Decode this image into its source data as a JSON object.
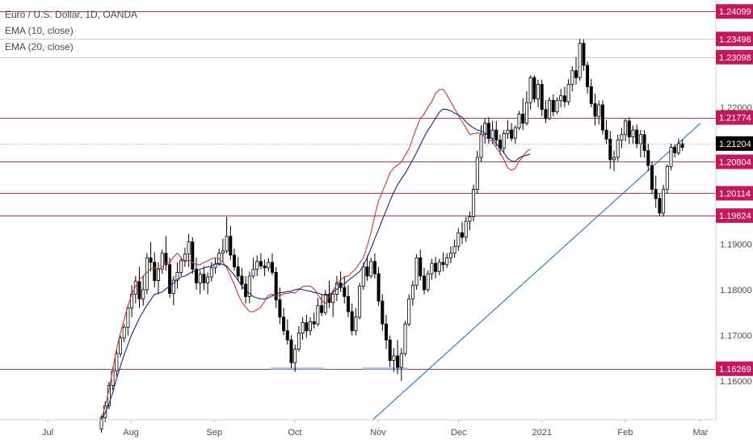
{
  "legend": {
    "symbol": "Euro / U.S. Dollar, 1D, OANDA",
    "ema10": "EMA (10, close)",
    "ema20": "EMA (20, close)"
  },
  "colors": {
    "candle_up_fill": "#ffffff",
    "candle_down_fill": "#000000",
    "candle_outline": "#000000",
    "ema10": "#d32f2f",
    "ema20": "#1a237e",
    "level_line": "#b0306a",
    "trendline": "#1565c0",
    "support_box": "#8fa8e8",
    "badge_bg": "#c2185b",
    "last_badge_bg": "#000000",
    "axis_text": "#4a4a4a",
    "grid_ref": "#bdbdbd"
  },
  "chart_data": {
    "type": "candlestick",
    "title": "Euro / U.S. Dollar, 1D, OANDA",
    "ylim": [
      1.1515,
      1.2435
    ],
    "y_ticks": [
      "1.16000",
      "1.17000",
      "1.18000",
      "1.19000",
      "1.22000"
    ],
    "x_ticks": [
      "Jul",
      "Aug",
      "Sep",
      "Oct",
      "Nov",
      "Dec",
      "2021",
      "Feb",
      "Mar"
    ],
    "horizontal_levels": [
      {
        "label": "1.24099",
        "value": 1.24099,
        "style": "solid"
      },
      {
        "label": "1.23496",
        "value": 1.23496,
        "style": "reference"
      },
      {
        "label": "1.23098",
        "value": 1.23098,
        "style": "reference"
      },
      {
        "label": "1.21774",
        "value": 1.21774,
        "style": "solid"
      },
      {
        "label": "1.20804",
        "value": 1.20804,
        "style": "solid"
      },
      {
        "label": "1.20114",
        "value": 1.20114,
        "style": "solid"
      },
      {
        "label": "1.19624",
        "value": 1.19624,
        "style": "solid"
      },
      {
        "label": "1.16269",
        "value": 1.16269,
        "style": "solid"
      }
    ],
    "last_price": {
      "label": "1.21204",
      "value": 1.21204
    },
    "trendline": {
      "from": [
        "2020-10-30",
        1.1515
      ],
      "to": [
        "2021-03-01",
        1.2165
      ]
    },
    "support_boxes": [
      {
        "from": "2020-09-22",
        "to": "2020-10-12",
        "value": 1.1627
      },
      {
        "from": "2020-10-26",
        "to": "2020-11-12",
        "value": 1.1627
      }
    ],
    "series": [
      {
        "name": "EMA (10, close)",
        "values": [
          1.1515,
          1.1545,
          1.158,
          1.1625,
          1.167,
          1.1705,
          1.1735,
          1.1765,
          1.179,
          1.1808,
          1.1822,
          1.183,
          1.1838,
          1.1846,
          1.1848,
          1.1845,
          1.185,
          1.1858,
          1.186,
          1.1872,
          1.188,
          1.187,
          1.186,
          1.1866,
          1.186,
          1.1855,
          1.1855,
          1.186,
          1.1863,
          1.1868,
          1.187,
          1.1868,
          1.186,
          1.1848,
          1.183,
          1.1812,
          1.179,
          1.1773,
          1.1762,
          1.1752,
          1.1752,
          1.1756,
          1.1762,
          1.1775,
          1.1788,
          1.179,
          1.1786,
          1.1787,
          1.1791,
          1.1792,
          1.1794,
          1.1793,
          1.18,
          1.1807,
          1.1808,
          1.1808,
          1.1802,
          1.179,
          1.1776,
          1.177,
          1.1785,
          1.1797,
          1.1812,
          1.1822,
          1.1828,
          1.183,
          1.1838,
          1.1846,
          1.1858,
          1.187,
          1.1896,
          1.1925,
          1.1962,
          1.1995,
          1.2015,
          1.2035,
          1.2056,
          1.2067,
          1.2073,
          1.208,
          1.2095,
          1.2108,
          1.2132,
          1.2155,
          1.2176,
          1.2185,
          1.22,
          1.2212,
          1.223,
          1.2239,
          1.2239,
          1.2227,
          1.2212,
          1.2197,
          1.2183,
          1.2168,
          1.2155,
          1.214,
          1.2142,
          1.2144,
          1.2142,
          1.2135,
          1.213,
          1.2125,
          1.2111,
          1.21,
          1.2085,
          1.2067,
          1.2062,
          1.2066,
          1.2082,
          1.2092,
          1.2103,
          1.2108
        ]
      },
      {
        "name": "EMA (20, close)",
        "values": [
          1.1515,
          1.153,
          1.155,
          1.1575,
          1.1605,
          1.1632,
          1.1658,
          1.168,
          1.1703,
          1.172,
          1.1738,
          1.1752,
          1.1766,
          1.1778,
          1.179,
          1.1792,
          1.1795,
          1.1802,
          1.1808,
          1.1815,
          1.1822,
          1.1828,
          1.183,
          1.1835,
          1.184,
          1.1842,
          1.1845,
          1.1848,
          1.185,
          1.1852,
          1.1857,
          1.1858,
          1.1855,
          1.1852,
          1.1842,
          1.1832,
          1.182,
          1.1808,
          1.1798,
          1.1792,
          1.1785,
          1.1782,
          1.178,
          1.178,
          1.1782,
          1.1787,
          1.179,
          1.1794,
          1.1794,
          1.1796,
          1.1797,
          1.18,
          1.1802,
          1.18,
          1.1798,
          1.1797,
          1.1794,
          1.1793,
          1.179,
          1.1788,
          1.179,
          1.1795,
          1.1801,
          1.1808,
          1.1813,
          1.182,
          1.1827,
          1.1833,
          1.184,
          1.1853,
          1.1871,
          1.189,
          1.1912,
          1.1932,
          1.1954,
          1.1974,
          1.1995,
          1.2014,
          1.203,
          1.2043,
          1.2055,
          1.207,
          1.2085,
          1.2101,
          1.2118,
          1.2135,
          1.215,
          1.2162,
          1.2176,
          1.2189,
          1.2196,
          1.2195,
          1.2192,
          1.2187,
          1.2183,
          1.2178,
          1.2168,
          1.216,
          1.2155,
          1.215,
          1.2148,
          1.2143,
          1.2138,
          1.213,
          1.212,
          1.211,
          1.21,
          1.2088,
          1.2082,
          1.2081,
          1.2089,
          1.2093,
          1.2095,
          1.2097
        ]
      }
    ],
    "candles": [
      [
        1.1495,
        1.1525,
        1.1487,
        1.152
      ],
      [
        1.152,
        1.1555,
        1.151,
        1.1546
      ],
      [
        1.1546,
        1.1598,
        1.1538,
        1.159
      ],
      [
        1.159,
        1.163,
        1.158,
        1.1622
      ],
      [
        1.1622,
        1.1668,
        1.161,
        1.166
      ],
      [
        1.166,
        1.17,
        1.1652,
        1.1694
      ],
      [
        1.1694,
        1.1725,
        1.1685,
        1.1718
      ],
      [
        1.1718,
        1.1768,
        1.17,
        1.176
      ],
      [
        1.176,
        1.181,
        1.174,
        1.179
      ],
      [
        1.179,
        1.183,
        1.177,
        1.1818
      ],
      [
        1.1818,
        1.185,
        1.176,
        1.178
      ],
      [
        1.178,
        1.183,
        1.1765,
        1.18
      ],
      [
        1.18,
        1.188,
        1.179,
        1.187
      ],
      [
        1.187,
        1.1905,
        1.184,
        1.186
      ],
      [
        1.186,
        1.1882,
        1.1805,
        1.182
      ],
      [
        1.182,
        1.186,
        1.179,
        1.1845
      ],
      [
        1.1845,
        1.1888,
        1.1835,
        1.188
      ],
      [
        1.188,
        1.1918,
        1.1842,
        1.1855
      ],
      [
        1.1855,
        1.187,
        1.1782,
        1.1792
      ],
      [
        1.1792,
        1.183,
        1.1766,
        1.1821
      ],
      [
        1.1821,
        1.186,
        1.1802,
        1.1838
      ],
      [
        1.1838,
        1.1872,
        1.183,
        1.1864
      ],
      [
        1.1864,
        1.1892,
        1.185,
        1.1878
      ],
      [
        1.1878,
        1.1922,
        1.185,
        1.1905
      ],
      [
        1.1905,
        1.1915,
        1.1835,
        1.1845
      ],
      [
        1.1845,
        1.187,
        1.18,
        1.1815
      ],
      [
        1.1815,
        1.1842,
        1.179,
        1.1834
      ],
      [
        1.1834,
        1.1852,
        1.1799,
        1.1815
      ],
      [
        1.1815,
        1.1838,
        1.179,
        1.1828
      ],
      [
        1.1828,
        1.186,
        1.1818,
        1.1848
      ],
      [
        1.1848,
        1.187,
        1.1835,
        1.1856
      ],
      [
        1.1856,
        1.189,
        1.1852,
        1.188
      ],
      [
        1.188,
        1.1912,
        1.186,
        1.1885
      ],
      [
        1.1885,
        1.196,
        1.188,
        1.1917
      ],
      [
        1.1917,
        1.194,
        1.1865,
        1.1876
      ],
      [
        1.1876,
        1.189,
        1.1842,
        1.185
      ],
      [
        1.185,
        1.1872,
        1.182,
        1.183
      ],
      [
        1.183,
        1.1848,
        1.18,
        1.1812
      ],
      [
        1.1812,
        1.183,
        1.177,
        1.1785
      ],
      [
        1.1785,
        1.184,
        1.177,
        1.183
      ],
      [
        1.183,
        1.187,
        1.1825,
        1.1845
      ],
      [
        1.1845,
        1.1875,
        1.183,
        1.1862
      ],
      [
        1.1862,
        1.188,
        1.1845,
        1.1852
      ],
      [
        1.1852,
        1.1866,
        1.183,
        1.1848
      ],
      [
        1.1848,
        1.187,
        1.184,
        1.186
      ],
      [
        1.186,
        1.188,
        1.1832,
        1.1838
      ],
      [
        1.1838,
        1.185,
        1.176,
        1.1778
      ],
      [
        1.1778,
        1.1805,
        1.1725,
        1.174
      ],
      [
        1.174,
        1.176,
        1.17,
        1.171
      ],
      [
        1.171,
        1.1735,
        1.168,
        1.169
      ],
      [
        1.169,
        1.17,
        1.1628,
        1.164
      ],
      [
        1.164,
        1.168,
        1.162,
        1.167
      ],
      [
        1.167,
        1.172,
        1.1665,
        1.1705
      ],
      [
        1.1705,
        1.174,
        1.169,
        1.1728
      ],
      [
        1.1728,
        1.1745,
        1.1695,
        1.171
      ],
      [
        1.171,
        1.174,
        1.17,
        1.173
      ],
      [
        1.173,
        1.175,
        1.1715,
        1.1725
      ],
      [
        1.1725,
        1.1782,
        1.172,
        1.1765
      ],
      [
        1.1765,
        1.179,
        1.1742,
        1.175
      ],
      [
        1.175,
        1.18,
        1.1745,
        1.179
      ],
      [
        1.179,
        1.182,
        1.176,
        1.1772
      ],
      [
        1.1772,
        1.18,
        1.174,
        1.179
      ],
      [
        1.179,
        1.183,
        1.1775,
        1.1815
      ],
      [
        1.1815,
        1.184,
        1.1795,
        1.1805
      ],
      [
        1.1805,
        1.183,
        1.177,
        1.1785
      ],
      [
        1.1785,
        1.181,
        1.174,
        1.1752
      ],
      [
        1.1752,
        1.177,
        1.17,
        1.171
      ],
      [
        1.171,
        1.176,
        1.17,
        1.174
      ],
      [
        1.174,
        1.1815,
        1.1735,
        1.1808
      ],
      [
        1.1808,
        1.186,
        1.18,
        1.185
      ],
      [
        1.185,
        1.1875,
        1.182,
        1.183
      ],
      [
        1.183,
        1.187,
        1.1825,
        1.1862
      ],
      [
        1.1862,
        1.188,
        1.1825,
        1.1835
      ],
      [
        1.1835,
        1.185,
        1.1765,
        1.1775
      ],
      [
        1.1775,
        1.179,
        1.171,
        1.1725
      ],
      [
        1.1725,
        1.1745,
        1.167,
        1.169
      ],
      [
        1.169,
        1.17,
        1.163,
        1.1645
      ],
      [
        1.1645,
        1.1672,
        1.162,
        1.1655
      ],
      [
        1.1655,
        1.169,
        1.1615,
        1.163
      ],
      [
        1.163,
        1.1672,
        1.16,
        1.166
      ],
      [
        1.166,
        1.1732,
        1.1655,
        1.1725
      ],
      [
        1.1725,
        1.179,
        1.172,
        1.178
      ],
      [
        1.178,
        1.182,
        1.1765,
        1.181
      ],
      [
        1.181,
        1.1878,
        1.18,
        1.187
      ],
      [
        1.187,
        1.1888,
        1.182,
        1.183
      ],
      [
        1.183,
        1.1848,
        1.179,
        1.18
      ],
      [
        1.18,
        1.1842,
        1.1795,
        1.1835
      ],
      [
        1.1835,
        1.1868,
        1.1822,
        1.1858
      ],
      [
        1.1858,
        1.1872,
        1.1825,
        1.184
      ],
      [
        1.184,
        1.1868,
        1.1832,
        1.186
      ],
      [
        1.186,
        1.1882,
        1.184,
        1.1855
      ],
      [
        1.1855,
        1.188,
        1.1848,
        1.187
      ],
      [
        1.187,
        1.1895,
        1.1858,
        1.188
      ],
      [
        1.188,
        1.191,
        1.187,
        1.1895
      ],
      [
        1.1895,
        1.1935,
        1.1885,
        1.1925
      ],
      [
        1.1925,
        1.1948,
        1.19,
        1.1915
      ],
      [
        1.1915,
        1.196,
        1.1905,
        1.195
      ],
      [
        1.195,
        1.1972,
        1.193,
        1.196
      ],
      [
        1.196,
        1.203,
        1.195,
        1.202
      ],
      [
        1.202,
        1.2105,
        1.201,
        1.209
      ],
      [
        1.209,
        1.216,
        1.208,
        1.214
      ],
      [
        1.214,
        1.2175,
        1.212,
        1.2165
      ],
      [
        1.2165,
        1.2178,
        1.212,
        1.2132
      ],
      [
        1.2132,
        1.217,
        1.212,
        1.215
      ],
      [
        1.215,
        1.217,
        1.2115,
        1.2128
      ],
      [
        1.2128,
        1.214,
        1.2095,
        1.211
      ],
      [
        1.211,
        1.215,
        1.21,
        1.2142
      ],
      [
        1.2142,
        1.2172,
        1.213,
        1.215
      ],
      [
        1.215,
        1.2165,
        1.2125,
        1.2132
      ],
      [
        1.2132,
        1.216,
        1.212,
        1.2155
      ],
      [
        1.2155,
        1.2192,
        1.215,
        1.2185
      ],
      [
        1.2185,
        1.222,
        1.215,
        1.2165
      ],
      [
        1.2165,
        1.2235,
        1.216,
        1.221
      ],
      [
        1.221,
        1.227,
        1.2195,
        1.2265
      ],
      [
        1.2265,
        1.227,
        1.221,
        1.2218
      ],
      [
        1.2218,
        1.226,
        1.22,
        1.225
      ],
      [
        1.225,
        1.226,
        1.218,
        1.2195
      ],
      [
        1.2195,
        1.2215,
        1.2165,
        1.2175
      ],
      [
        1.2175,
        1.2222,
        1.2172,
        1.2215
      ],
      [
        1.2215,
        1.2228,
        1.218,
        1.219
      ],
      [
        1.219,
        1.2222,
        1.2185,
        1.2215
      ],
      [
        1.2215,
        1.224,
        1.22,
        1.2225
      ],
      [
        1.2225,
        1.2245,
        1.22,
        1.2212
      ],
      [
        1.2212,
        1.2262,
        1.2205,
        1.225
      ],
      [
        1.225,
        1.229,
        1.2235,
        1.228
      ],
      [
        1.228,
        1.231,
        1.225,
        1.2265
      ],
      [
        1.2265,
        1.235,
        1.2258,
        1.234
      ],
      [
        1.234,
        1.2349,
        1.228,
        1.2292
      ],
      [
        1.2292,
        1.23,
        1.223,
        1.2245
      ],
      [
        1.2245,
        1.2262,
        1.22,
        1.2208
      ],
      [
        1.2208,
        1.223,
        1.216,
        1.218
      ],
      [
        1.218,
        1.2215,
        1.2162,
        1.2205
      ],
      [
        1.2205,
        1.2215,
        1.214,
        1.215
      ],
      [
        1.215,
        1.2172,
        1.212,
        1.213
      ],
      [
        1.213,
        1.2148,
        1.2065,
        1.2085
      ],
      [
        1.2085,
        1.2105,
        1.206,
        1.209
      ],
      [
        1.209,
        1.214,
        1.2082,
        1.2128
      ],
      [
        1.2128,
        1.2155,
        1.211,
        1.214
      ],
      [
        1.214,
        1.2175,
        1.2125,
        1.217
      ],
      [
        1.217,
        1.2178,
        1.212,
        1.2135
      ],
      [
        1.2135,
        1.216,
        1.2118,
        1.215
      ],
      [
        1.215,
        1.2162,
        1.211,
        1.212
      ],
      [
        1.212,
        1.215,
        1.209,
        1.214
      ],
      [
        1.214,
        1.215,
        1.209,
        1.2105
      ],
      [
        1.2105,
        1.212,
        1.206,
        1.2072
      ],
      [
        1.2072,
        1.208,
        1.201,
        1.202
      ],
      [
        1.202,
        1.205,
        1.198,
        1.2
      ],
      [
        1.2,
        1.201,
        1.1962,
        1.1968
      ],
      [
        1.1968,
        1.203,
        1.196,
        1.202
      ],
      [
        1.202,
        1.2075,
        1.201,
        1.207
      ],
      [
        1.207,
        1.212,
        1.2062,
        1.2112
      ],
      [
        1.2112,
        1.2118,
        1.209,
        1.21
      ],
      [
        1.21,
        1.2132,
        1.2095,
        1.212
      ],
      [
        1.212,
        1.213,
        1.2105,
        1.2112
      ]
    ]
  }
}
